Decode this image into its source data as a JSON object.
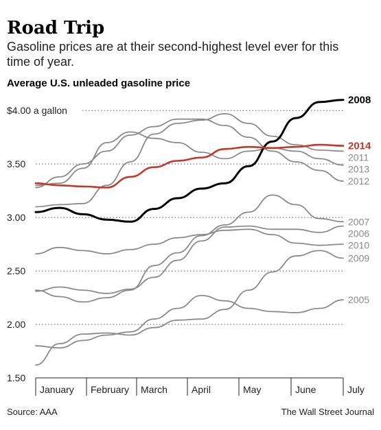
{
  "title": "Road Trip",
  "subtitle": "Gasoline prices are at their second-highest level ever for this time of year.",
  "source": "Source: AAA",
  "credit": "The Wall Street Journal",
  "colors": {
    "grey": "#8a8a8a",
    "black": "#000000",
    "red": "#c0392b"
  },
  "chart_data": {
    "type": "line",
    "ylabel": "Average U.S. unleaded gasoline price",
    "ylim": [
      1.5,
      4.2
    ],
    "y_ticks": [
      1.5,
      2.0,
      2.5,
      3.0,
      3.5,
      4.0
    ],
    "y_tick_labels": [
      "1.50",
      "2.00",
      "2.50",
      "3.00",
      "3.50",
      "$4.00 a gallon"
    ],
    "grid": "dotted horizontal",
    "months": [
      "January",
      "February",
      "March",
      "April",
      "May",
      "June",
      "July"
    ],
    "x_unit": "week of year",
    "x": [
      1,
      3,
      5,
      7,
      9,
      11,
      13,
      15,
      17,
      19,
      21,
      23,
      25,
      27
    ],
    "series": [
      {
        "name": "2008",
        "highlight": "black",
        "values": [
          3.05,
          3.09,
          3.03,
          2.98,
          2.96,
          3.08,
          3.18,
          3.27,
          3.32,
          3.48,
          3.71,
          3.93,
          4.08,
          4.1
        ]
      },
      {
        "name": "2014",
        "highlight": "red",
        "values": [
          3.32,
          3.3,
          3.29,
          3.28,
          3.38,
          3.47,
          3.53,
          3.56,
          3.64,
          3.66,
          3.65,
          3.66,
          3.68,
          3.67
        ]
      },
      {
        "name": "2011",
        "values": [
          3.1,
          3.12,
          3.13,
          3.3,
          3.52,
          3.78,
          3.88,
          3.91,
          3.97,
          3.88,
          3.76,
          3.68,
          3.63,
          3.62
        ]
      },
      {
        "name": "2013",
        "values": [
          3.3,
          3.32,
          3.46,
          3.7,
          3.8,
          3.74,
          3.7,
          3.61,
          3.55,
          3.62,
          3.65,
          3.62,
          3.55,
          3.49
        ]
      },
      {
        "name": "2012",
        "values": [
          3.28,
          3.38,
          3.5,
          3.62,
          3.77,
          3.85,
          3.92,
          3.92,
          3.86,
          3.75,
          3.62,
          3.52,
          3.44,
          3.34
        ]
      },
      {
        "name": "2007",
        "values": [
          2.32,
          2.26,
          2.21,
          2.25,
          2.32,
          2.55,
          2.67,
          2.83,
          2.93,
          3.05,
          3.21,
          3.12,
          2.99,
          2.96
        ]
      },
      {
        "name": "2006",
        "values": [
          2.31,
          2.35,
          2.32,
          2.29,
          2.33,
          2.44,
          2.6,
          2.78,
          2.91,
          2.92,
          2.89,
          2.89,
          2.86,
          2.92
        ]
      },
      {
        "name": "2010",
        "values": [
          2.66,
          2.72,
          2.69,
          2.66,
          2.7,
          2.75,
          2.81,
          2.84,
          2.88,
          2.89,
          2.84,
          2.76,
          2.74,
          2.75
        ]
      },
      {
        "name": "2009",
        "values": [
          1.62,
          1.82,
          1.91,
          1.92,
          1.9,
          1.97,
          2.04,
          2.05,
          2.14,
          2.32,
          2.49,
          2.64,
          2.69,
          2.62
        ]
      },
      {
        "name": "2005",
        "values": [
          1.8,
          1.78,
          1.85,
          1.9,
          1.93,
          2.05,
          2.15,
          2.27,
          2.22,
          2.15,
          2.12,
          2.11,
          2.15,
          2.23
        ]
      }
    ]
  }
}
